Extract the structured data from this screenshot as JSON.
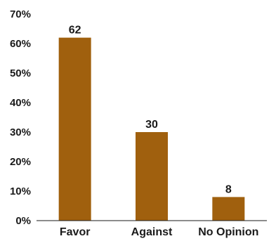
{
  "chart_data": {
    "type": "bar",
    "title": "",
    "xlabel": "",
    "ylabel": "",
    "categories": [
      "Favor",
      "Against",
      "No Opinion"
    ],
    "values": [
      62,
      30,
      8
    ],
    "data_labels": [
      "62",
      "30",
      "8"
    ],
    "ylim": [
      0,
      70
    ],
    "y_ticks": [
      0,
      10,
      20,
      30,
      40,
      50,
      60,
      70
    ],
    "y_tick_labels": [
      "0%",
      "10%",
      "20%",
      "30%",
      "40%",
      "50%",
      "60%",
      "70%"
    ],
    "grid": false,
    "legend": "none",
    "bar_color": "#a0600e",
    "axis_color": "#1a1a1a"
  }
}
